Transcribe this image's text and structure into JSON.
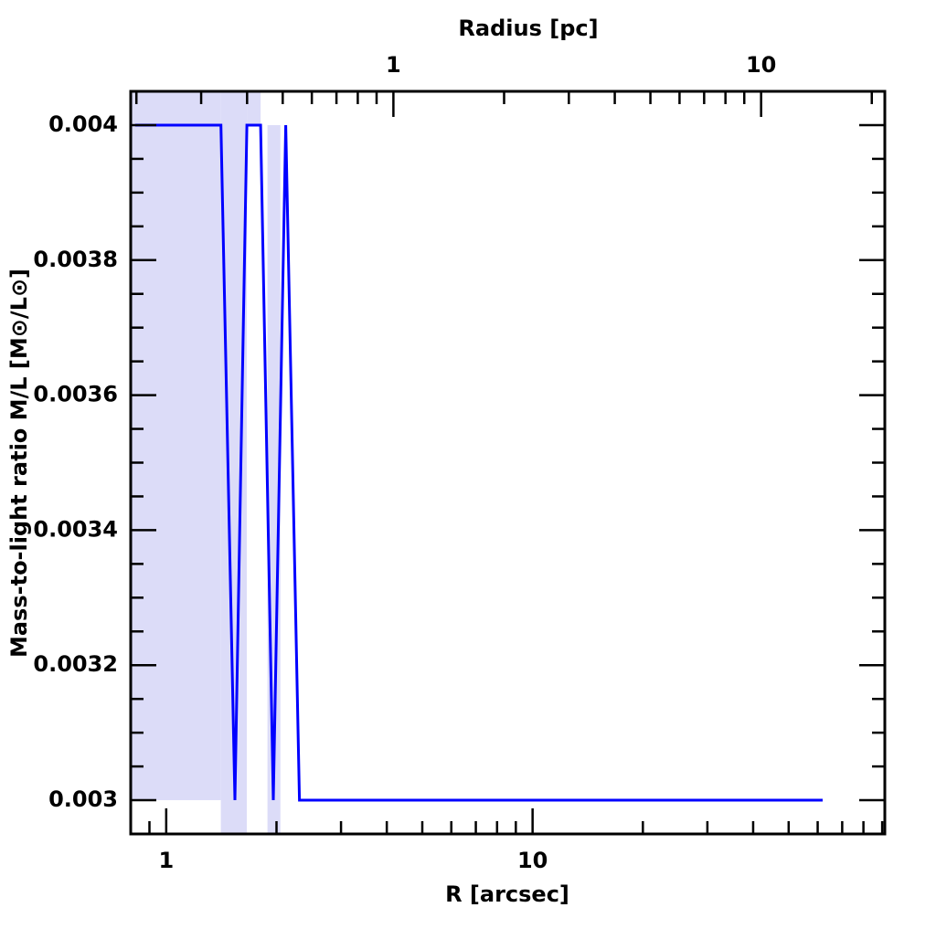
{
  "chart_data": {
    "type": "line",
    "x_label": "R [arcsec]",
    "y_label": "Mass-to-light ratio M/L [M⊙/L⊙]",
    "top_label": "Radius [pc]",
    "xscale": "log",
    "xlim": [
      0.8,
      91.5
    ],
    "xticks": [
      1,
      10
    ],
    "xminorticks": [
      0.9,
      2,
      3,
      4,
      5,
      6,
      7,
      8,
      9,
      20,
      30,
      40,
      50,
      60,
      70,
      80,
      90
    ],
    "toplim": [
      0.193,
      21.7
    ],
    "topticks": [
      1,
      10
    ],
    "topminorticks": [
      0.2,
      0.3,
      0.4,
      0.5,
      0.6,
      0.7,
      0.8,
      0.9,
      2,
      3,
      4,
      5,
      6,
      7,
      8,
      9,
      20
    ],
    "ylim": [
      0.00295,
      0.00405
    ],
    "yticks": [
      0.003,
      0.0032,
      0.0034,
      0.0036,
      0.0038,
      0.004
    ],
    "yminorticks": [
      0.00305,
      0.0031,
      0.00315,
      0.00325,
      0.0033,
      0.00335,
      0.00345,
      0.0035,
      0.00355,
      0.00365,
      0.0037,
      0.00375,
      0.00385,
      0.0039,
      0.00395,
      0.00405
    ],
    "band_color": "#dcdcf8",
    "bands": [
      {
        "x": [
          0.8,
          1.41
        ],
        "y": [
          0.003,
          0.00405
        ]
      },
      {
        "x": [
          1.41,
          1.66
        ],
        "y": [
          0.00295,
          0.00405
        ]
      },
      {
        "x": [
          1.66,
          1.81
        ],
        "y": [
          0.004,
          0.00405
        ]
      },
      {
        "x": [
          1.89,
          2.05
        ],
        "y": [
          0.00295,
          0.004
        ]
      }
    ],
    "series": [
      {
        "color": "#0000ff",
        "x": [
          0.823,
          1.41,
          1.54,
          1.66,
          1.81,
          1.96,
          2.12,
          2.31,
          61.9
        ],
        "values": [
          0.004,
          0.004,
          0.003,
          0.004,
          0.004,
          0.003,
          0.004,
          0.003,
          0.003
        ]
      }
    ]
  }
}
